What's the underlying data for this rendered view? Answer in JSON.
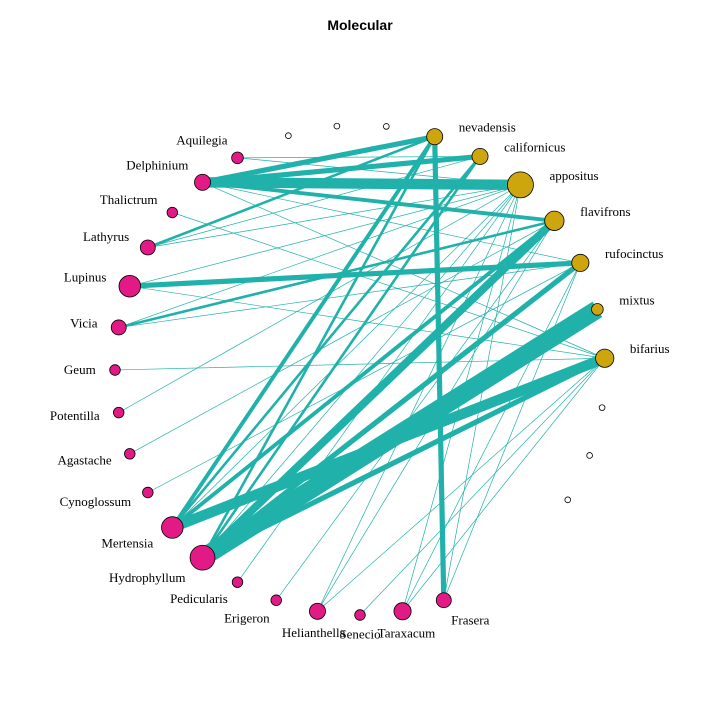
{
  "title": "Molecular",
  "colors": {
    "edge": "#20b2aa",
    "pollinator": "#cda50d",
    "plant": "#e11a86",
    "outline": "#000000"
  },
  "pollinators": [
    {
      "id": "u1",
      "label": "",
      "size": 0.08
    },
    {
      "id": "u2",
      "label": "",
      "size": 0.08
    },
    {
      "id": "u3",
      "label": "",
      "size": 0.08
    },
    {
      "id": "nevadensis",
      "label": "nevadensis",
      "size": 0.55
    },
    {
      "id": "californicus",
      "label": "californicus",
      "size": 0.55
    },
    {
      "id": "appositus",
      "label": "appositus",
      "size": 1.0
    },
    {
      "id": "flavifrons",
      "label": "flavifrons",
      "size": 0.7
    },
    {
      "id": "rufocinctus",
      "label": "rufocinctus",
      "size": 0.6
    },
    {
      "id": "mixtus",
      "label": "mixtus",
      "size": 0.35
    },
    {
      "id": "bifarius",
      "label": "bifarius",
      "size": 0.65
    },
    {
      "id": "u4",
      "label": "",
      "size": 0.08
    },
    {
      "id": "u5",
      "label": "",
      "size": 0.08
    },
    {
      "id": "u6",
      "label": "",
      "size": 0.08
    }
  ],
  "plants": [
    {
      "id": "Aquilegia",
      "label": "Aquilegia",
      "size": 0.35
    },
    {
      "id": "Delphinium",
      "label": "Delphinium",
      "size": 0.55
    },
    {
      "id": "Thalictrum",
      "label": "Thalictrum",
      "size": 0.3
    },
    {
      "id": "Lathyrus",
      "label": "Lathyrus",
      "size": 0.5
    },
    {
      "id": "Lupinus",
      "label": "Lupinus",
      "size": 0.8
    },
    {
      "id": "Vicia",
      "label": "Vicia",
      "size": 0.5
    },
    {
      "id": "Geum",
      "label": "Geum",
      "size": 0.3
    },
    {
      "id": "Potentilla",
      "label": "Potentilla",
      "size": 0.3
    },
    {
      "id": "Agastache",
      "label": "Agastache",
      "size": 0.3
    },
    {
      "id": "Cynoglossum",
      "label": "Cynoglossum",
      "size": 0.3
    },
    {
      "id": "Mertensia",
      "label": "Mertensia",
      "size": 0.8
    },
    {
      "id": "Hydrophyllum",
      "label": "Hydrophyllum",
      "size": 0.95
    },
    {
      "id": "Pedicularis",
      "label": "Pedicularis",
      "size": 0.3
    },
    {
      "id": "Erigeron",
      "label": "Erigeron",
      "size": 0.3
    },
    {
      "id": "Helianthella",
      "label": "Helianthella",
      "size": 0.55
    },
    {
      "id": "Senecio",
      "label": "Senecio",
      "size": 0.3
    },
    {
      "id": "Taraxacum",
      "label": "Taraxacum",
      "size": 0.6
    },
    {
      "id": "Frasera",
      "label": "Frasera",
      "size": 0.5
    }
  ],
  "edges": [
    {
      "from": "Delphinium",
      "to": "nevadensis",
      "weight": 4
    },
    {
      "from": "Delphinium",
      "to": "californicus",
      "weight": 4
    },
    {
      "from": "Delphinium",
      "to": "appositus",
      "weight": 8
    },
    {
      "from": "Delphinium",
      "to": "flavifrons",
      "weight": 3
    },
    {
      "from": "Delphinium",
      "to": "rufocinctus",
      "weight": 1
    },
    {
      "from": "Delphinium",
      "to": "bifarius",
      "weight": 1
    },
    {
      "from": "Aquilegia",
      "to": "appositus",
      "weight": 1
    },
    {
      "from": "Aquilegia",
      "to": "californicus",
      "weight": 1
    },
    {
      "from": "Thalictrum",
      "to": "bifarius",
      "weight": 1
    },
    {
      "from": "Lathyrus",
      "to": "nevadensis",
      "weight": 2
    },
    {
      "from": "Lathyrus",
      "to": "californicus",
      "weight": 1
    },
    {
      "from": "Lathyrus",
      "to": "appositus",
      "weight": 1
    },
    {
      "from": "Lupinus",
      "to": "rufocinctus",
      "weight": 4
    },
    {
      "from": "Lupinus",
      "to": "bifarius",
      "weight": 1
    },
    {
      "from": "Lupinus",
      "to": "appositus",
      "weight": 1
    },
    {
      "from": "Vicia",
      "to": "flavifrons",
      "weight": 2
    },
    {
      "from": "Vicia",
      "to": "appositus",
      "weight": 1
    },
    {
      "from": "Vicia",
      "to": "rufocinctus",
      "weight": 1
    },
    {
      "from": "Geum",
      "to": "bifarius",
      "weight": 1
    },
    {
      "from": "Potentilla",
      "to": "appositus",
      "weight": 1
    },
    {
      "from": "Agastache",
      "to": "flavifrons",
      "weight": 1
    },
    {
      "from": "Cynoglossum",
      "to": "rufocinctus",
      "weight": 1
    },
    {
      "from": "Mertensia",
      "to": "bifarius",
      "weight": 8
    },
    {
      "from": "Mertensia",
      "to": "nevadensis",
      "weight": 3
    },
    {
      "from": "Mertensia",
      "to": "californicus",
      "weight": 2
    },
    {
      "from": "Mertensia",
      "to": "flavifrons",
      "weight": 3
    },
    {
      "from": "Mertensia",
      "to": "appositus",
      "weight": 1
    },
    {
      "from": "Hydrophyllum",
      "to": "mixtus",
      "weight": 14
    },
    {
      "from": "Hydrophyllum",
      "to": "flavifrons",
      "weight": 6
    },
    {
      "from": "Hydrophyllum",
      "to": "rufocinctus",
      "weight": 4
    },
    {
      "from": "Hydrophyllum",
      "to": "bifarius",
      "weight": 4
    },
    {
      "from": "Hydrophyllum",
      "to": "nevadensis",
      "weight": 2
    },
    {
      "from": "Hydrophyllum",
      "to": "californicus",
      "weight": 2
    },
    {
      "from": "Hydrophyllum",
      "to": "appositus",
      "weight": 1
    },
    {
      "from": "Pedicularis",
      "to": "appositus",
      "weight": 1
    },
    {
      "from": "Erigeron",
      "to": "flavifrons",
      "weight": 1
    },
    {
      "from": "Helianthella",
      "to": "bifarius",
      "weight": 1
    },
    {
      "from": "Helianthella",
      "to": "flavifrons",
      "weight": 1
    },
    {
      "from": "Helianthella",
      "to": "appositus",
      "weight": 1
    },
    {
      "from": "Senecio",
      "to": "bifarius",
      "weight": 1
    },
    {
      "from": "Taraxacum",
      "to": "bifarius",
      "weight": 1
    },
    {
      "from": "Taraxacum",
      "to": "appositus",
      "weight": 1
    },
    {
      "from": "Taraxacum",
      "to": "rufocinctus",
      "weight": 1
    },
    {
      "from": "Frasera",
      "to": "nevadensis",
      "weight": 4
    },
    {
      "from": "Frasera",
      "to": "rufocinctus",
      "weight": 1
    },
    {
      "from": "Frasera",
      "to": "appositus",
      "weight": 1
    }
  ]
}
